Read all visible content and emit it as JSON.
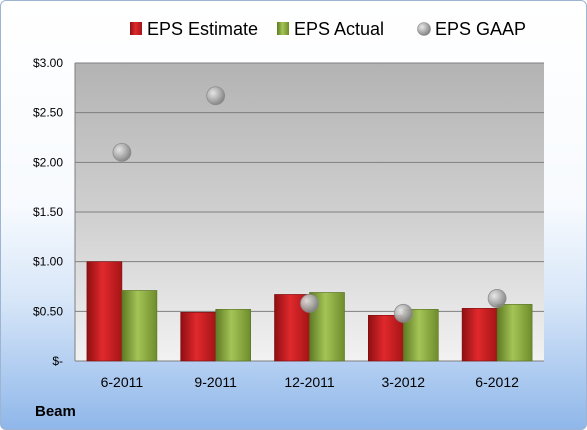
{
  "company": "Beam",
  "chart_data": {
    "type": "bar",
    "categories": [
      "6-2011",
      "9-2011",
      "12-2011",
      "3-2012",
      "6-2012"
    ],
    "series": [
      {
        "name": "EPS Estimate",
        "type": "bar",
        "color": "#c0191c",
        "values": [
          1.0,
          0.49,
          0.67,
          0.46,
          0.53
        ]
      },
      {
        "name": "EPS Actual",
        "type": "bar",
        "color": "#8aaa3d",
        "values": [
          0.71,
          0.52,
          0.69,
          0.52,
          0.57
        ]
      },
      {
        "name": "EPS GAAP",
        "type": "scatter",
        "color": "#9a9a9a",
        "values": [
          2.1,
          2.67,
          0.58,
          0.48,
          0.63
        ]
      }
    ],
    "ylim": [
      0,
      3.0
    ],
    "yticks": [
      0,
      0.5,
      1.0,
      1.5,
      2.0,
      2.5,
      3.0
    ],
    "ytick_labels": [
      "$-",
      "$0.50",
      "$1.00",
      "$1.50",
      "$2.00",
      "$2.50",
      "$3.00"
    ],
    "grid": true,
    "legend_position": "top"
  }
}
